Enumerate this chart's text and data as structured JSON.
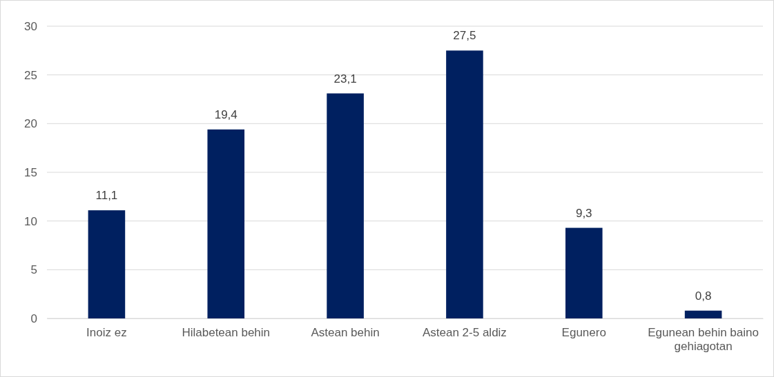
{
  "chart_data": {
    "type": "bar",
    "categories": [
      "Inoiz ez",
      "Hilabetean behin",
      "Astean behin",
      "Astean 2-5 aldiz",
      "Egunero",
      "Egunean behin baino gehiagotan"
    ],
    "values": [
      11.1,
      19.4,
      23.1,
      27.5,
      9.3,
      0.8
    ],
    "value_labels": [
      "11,1",
      "19,4",
      "23,1",
      "27,5",
      "9,3",
      "0,8"
    ],
    "color": "#002060",
    "ylim": [
      0,
      30
    ],
    "yticks": [
      0,
      5,
      10,
      15,
      20,
      25,
      30
    ],
    "grid": "y"
  }
}
